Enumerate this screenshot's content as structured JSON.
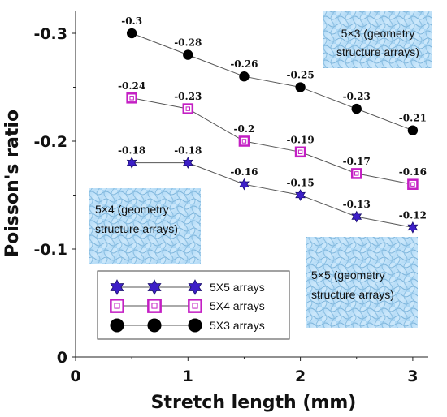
{
  "chart_data": {
    "type": "line",
    "xlabel": "Stretch length (mm)",
    "ylabel": "Poisson's ratio",
    "xlim": [
      0,
      3.25
    ],
    "ylim": [
      0,
      -0.32
    ],
    "y_axis_inverted": true,
    "x_ticks": [
      "0",
      "1",
      "2",
      "3"
    ],
    "x_tick_values": [
      0,
      1,
      2,
      3
    ],
    "y_ticks": [
      "0",
      "-0.1",
      "-0.2",
      "-0.3"
    ],
    "y_tick_values": [
      0,
      -0.1,
      -0.2,
      -0.3
    ],
    "grid": false,
    "legend_position": "bottom-left",
    "x": [
      0.5,
      1,
      1.5,
      2,
      2.5,
      3
    ],
    "series": [
      {
        "name": "5X5 arrays",
        "marker": "hexagram",
        "color": "#3d1fc8",
        "values": [
          -0.18,
          -0.18,
          -0.16,
          -0.15,
          -0.13,
          -0.12
        ],
        "labels": [
          "-0.18",
          "-0.18",
          "-0.16",
          "-0.15",
          "-0.13",
          "-0.12"
        ]
      },
      {
        "name": "5X4 arrays",
        "marker": "square",
        "color": "#c41fc4",
        "values": [
          -0.24,
          -0.23,
          -0.2,
          -0.19,
          -0.17,
          -0.16
        ],
        "labels": [
          "-0.24",
          "-0.23",
          "-0.2",
          "-0.19",
          "-0.17",
          "-0.16"
        ]
      },
      {
        "name": "5X3 arrays",
        "marker": "circle",
        "color": "#000000",
        "values": [
          -0.3,
          -0.28,
          -0.26,
          -0.25,
          -0.23,
          -0.21
        ],
        "labels": [
          "-0.3",
          "-0.28",
          "-0.26",
          "-0.25",
          "-0.23",
          "-0.21"
        ]
      }
    ],
    "insets": [
      {
        "id": "5x3",
        "lines": [
          "5×3 (geometry",
          "structure arrays)"
        ]
      },
      {
        "id": "5x4",
        "lines": [
          "5×4 (geometry",
          "structure arrays)"
        ]
      },
      {
        "id": "5x5",
        "lines": [
          "5×5 (geometry",
          "structure arrays)"
        ]
      }
    ]
  }
}
